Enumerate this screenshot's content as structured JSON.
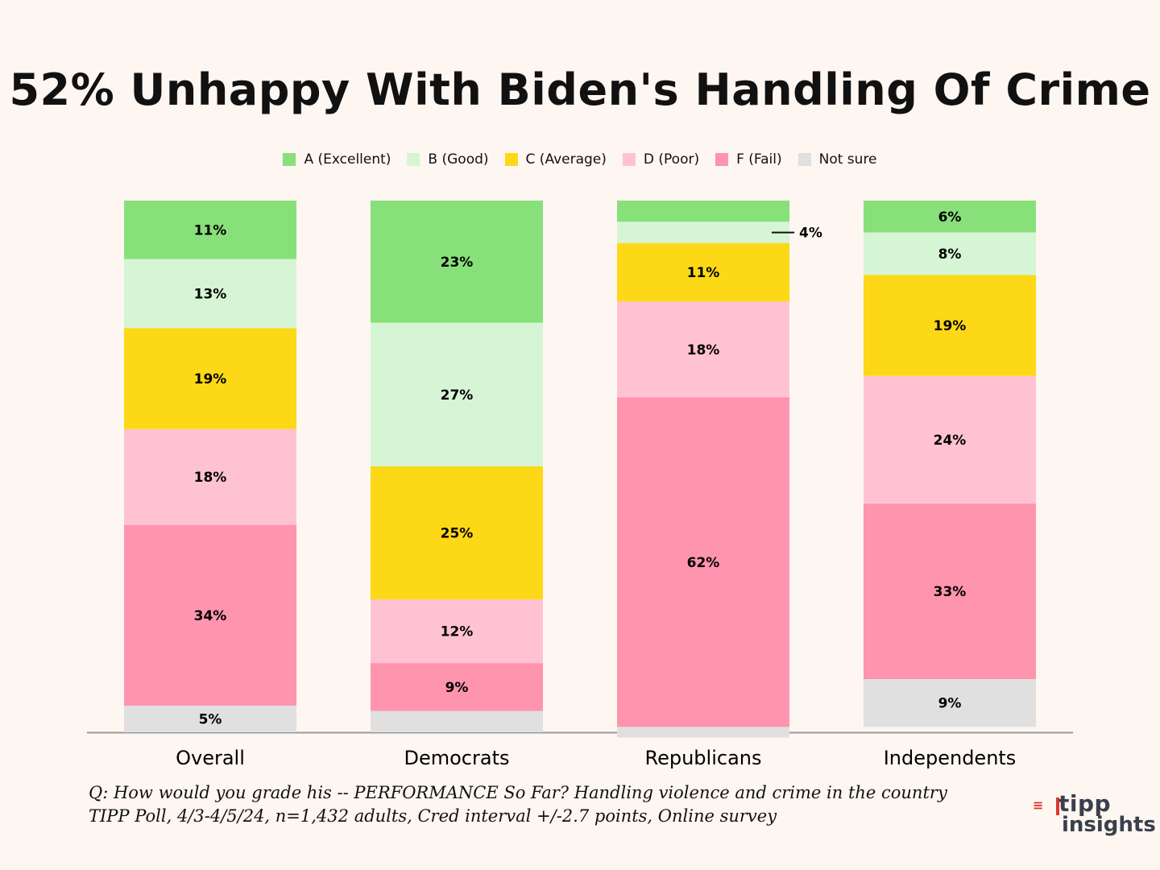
{
  "title": "52% Unhappy With Biden's Handling Of Crime",
  "legend": [
    {
      "label": "A (Excellent)",
      "color": "#88e07a"
    },
    {
      "label": "B (Good)",
      "color": "#d6f5d4"
    },
    {
      "label": "C (Average)",
      "color": "#fdd816"
    },
    {
      "label": "D (Poor)",
      "color": "#ffc2d2"
    },
    {
      "label": "F (Fail)",
      "color": "#ff94ae"
    },
    {
      "label": "Not sure",
      "color": "#e0e0e0"
    }
  ],
  "chart_data": {
    "type": "bar",
    "stacked": true,
    "title": "52% Unhappy With Biden's Handling Of Crime",
    "categories": [
      "Overall",
      "Democrats",
      "Republicans",
      "Independents"
    ],
    "ylim": [
      0,
      100
    ],
    "series": [
      {
        "name": "A (Excellent)",
        "color": "#88e07a",
        "values": [
          11,
          23,
          4,
          6
        ],
        "labels": [
          "11%",
          "23%",
          "",
          "6%"
        ]
      },
      {
        "name": "B (Good)",
        "color": "#d6f5d4",
        "values": [
          13,
          27,
          4,
          8
        ],
        "labels": [
          "13%",
          "27%",
          "4%",
          "8%"
        ]
      },
      {
        "name": "C (Average)",
        "color": "#fdd816",
        "values": [
          19,
          25,
          11,
          19
        ],
        "labels": [
          "19%",
          "25%",
          "11%",
          "19%"
        ]
      },
      {
        "name": "D (Poor)",
        "color": "#ffc2d2",
        "values": [
          18,
          12,
          18,
          24
        ],
        "labels": [
          "18%",
          "12%",
          "18%",
          "24%"
        ]
      },
      {
        "name": "F (Fail)",
        "color": "#ff94ae",
        "values": [
          34,
          9,
          62,
          33
        ],
        "labels": [
          "34%",
          "9%",
          "62%",
          "33%"
        ]
      },
      {
        "name": "Not sure",
        "color": "#e0e0e0",
        "values": [
          5,
          4,
          2,
          9
        ],
        "labels": [
          "5%",
          "",
          "",
          "9%"
        ]
      }
    ]
  },
  "footnote": {
    "line1": "Q:  How would you grade his -- PERFORMANCE So Far? Handling violence and crime in the country",
    "line2": "TIPP Poll, 4/3-4/5/24, n=1,432 adults, Cred interval +/-2.7 points, Online survey"
  },
  "logo": {
    "top": "tipp",
    "bottom": "insights"
  }
}
